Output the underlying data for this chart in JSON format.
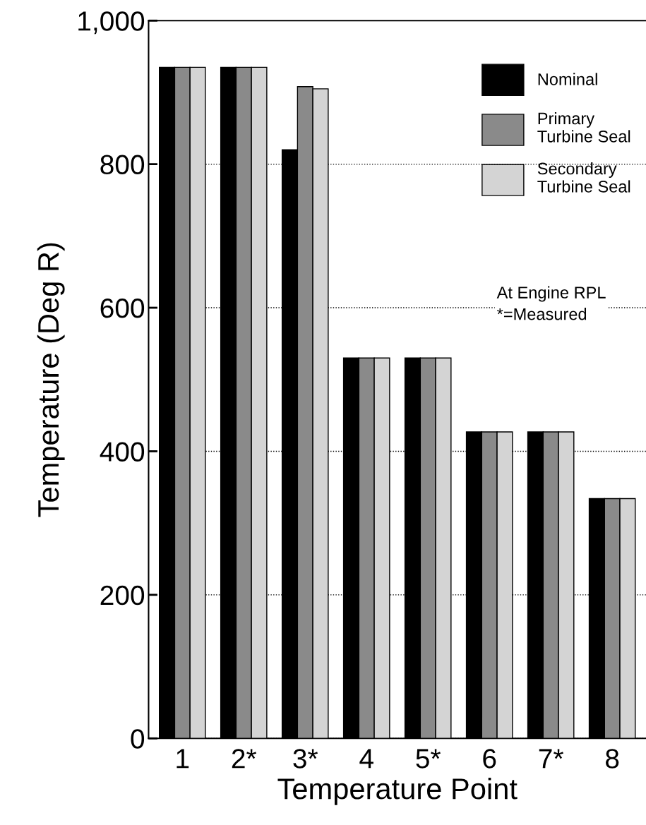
{
  "chart_data": {
    "type": "bar",
    "xlabel": "Temperature Point",
    "ylabel": "Temperature (Deg R)",
    "categories": [
      "1",
      "2*",
      "3*",
      "4",
      "5*",
      "6",
      "7*",
      "8"
    ],
    "series": [
      {
        "name": "Nominal",
        "color": "#000000",
        "values": [
          935,
          935,
          820,
          530,
          530,
          427,
          427,
          334
        ]
      },
      {
        "name": "Primary\nTurbine Seal",
        "color": "#8a8a8a",
        "values": [
          935,
          935,
          908,
          530,
          530,
          427,
          427,
          334
        ]
      },
      {
        "name": "Secondary\nTurbine Seal",
        "color": "#d4d4d4",
        "values": [
          935,
          935,
          905,
          530,
          530,
          427,
          427,
          334
        ]
      }
    ],
    "ylim": [
      0,
      1000
    ],
    "yticks": [
      0,
      200,
      400,
      600,
      800,
      {
        "value": 1000,
        "label": "1,000"
      }
    ],
    "grid": "y",
    "legend": "top right",
    "annotations": [
      "At Engine RPL\n*=Measured"
    ]
  }
}
